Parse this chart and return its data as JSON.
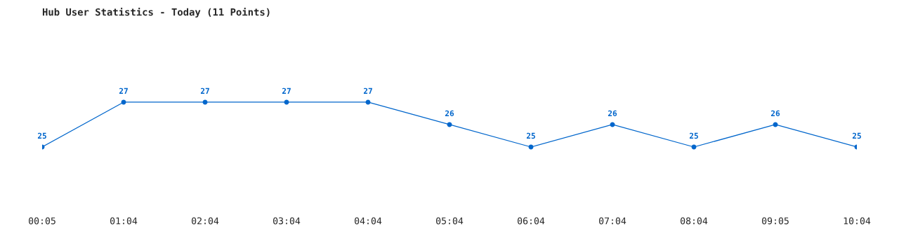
{
  "chart_data": {
    "type": "line",
    "title": "Hub User Statistics - Today (11 Points)",
    "categories": [
      "00:05",
      "01:04",
      "02:04",
      "03:04",
      "04:04",
      "05:04",
      "06:04",
      "07:04",
      "08:04",
      "09:05",
      "10:04"
    ],
    "series": [
      {
        "color": "#0066cc",
        "values": [
          25,
          27,
          27,
          27,
          27,
          26,
          25,
          26,
          25,
          26,
          25
        ]
      }
    ],
    "data_labels": true,
    "marker": "circle",
    "grid": false,
    "legend": false,
    "tick_labels": "x"
  }
}
